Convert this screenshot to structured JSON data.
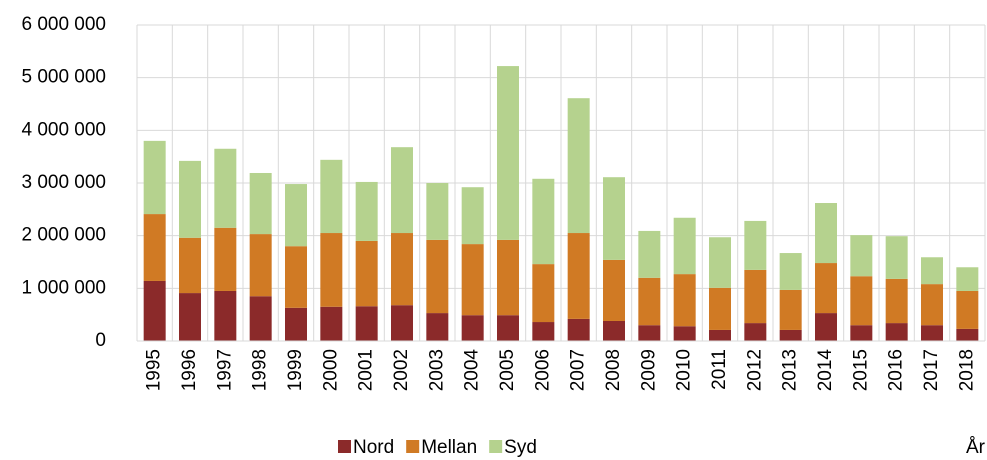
{
  "chart_data": {
    "type": "stacked_bar",
    "x_label": "År",
    "categories": [
      "1995",
      "1996",
      "1997",
      "1998",
      "1999",
      "2000",
      "2001",
      "2002",
      "2003",
      "2004",
      "2005",
      "2006",
      "2007",
      "2008",
      "2009",
      "2010",
      "2011",
      "2012",
      "2013",
      "2014",
      "2015",
      "2016",
      "2017",
      "2018"
    ],
    "series": [
      {
        "name": "Nord",
        "color": "#8b2a2a",
        "values": [
          1140000,
          910000,
          950000,
          850000,
          630000,
          650000,
          660000,
          680000,
          530000,
          490000,
          490000,
          360000,
          420000,
          380000,
          300000,
          280000,
          210000,
          340000,
          210000,
          530000,
          300000,
          340000,
          300000,
          230000
        ]
      },
      {
        "name": "Mellan",
        "color": "#d07a24",
        "values": [
          1270000,
          1050000,
          1200000,
          1180000,
          1170000,
          1400000,
          1240000,
          1370000,
          1390000,
          1350000,
          1430000,
          1100000,
          1630000,
          1160000,
          900000,
          990000,
          800000,
          1010000,
          760000,
          950000,
          930000,
          840000,
          780000,
          720000
        ]
      },
      {
        "name": "Syd",
        "color": "#b5d28e",
        "values": [
          1390000,
          1460000,
          1500000,
          1160000,
          1180000,
          1390000,
          1120000,
          1630000,
          1080000,
          1080000,
          3300000,
          1620000,
          2560000,
          1570000,
          890000,
          1070000,
          960000,
          930000,
          700000,
          1140000,
          780000,
          810000,
          510000,
          450000
        ]
      }
    ],
    "ylim": [
      0,
      6000000
    ],
    "yticks": [
      0,
      {
        "value": 1000000,
        "label": "1 000 000"
      },
      {
        "value": 2000000,
        "label": "2 000 000"
      },
      {
        "value": 3000000,
        "label": "3 000 000"
      },
      {
        "value": 4000000,
        "label": "4 000 000"
      },
      {
        "value": 5000000,
        "label": "5 000 000"
      },
      {
        "value": 6000000,
        "label": "6 000 000"
      }
    ],
    "grid": true
  }
}
